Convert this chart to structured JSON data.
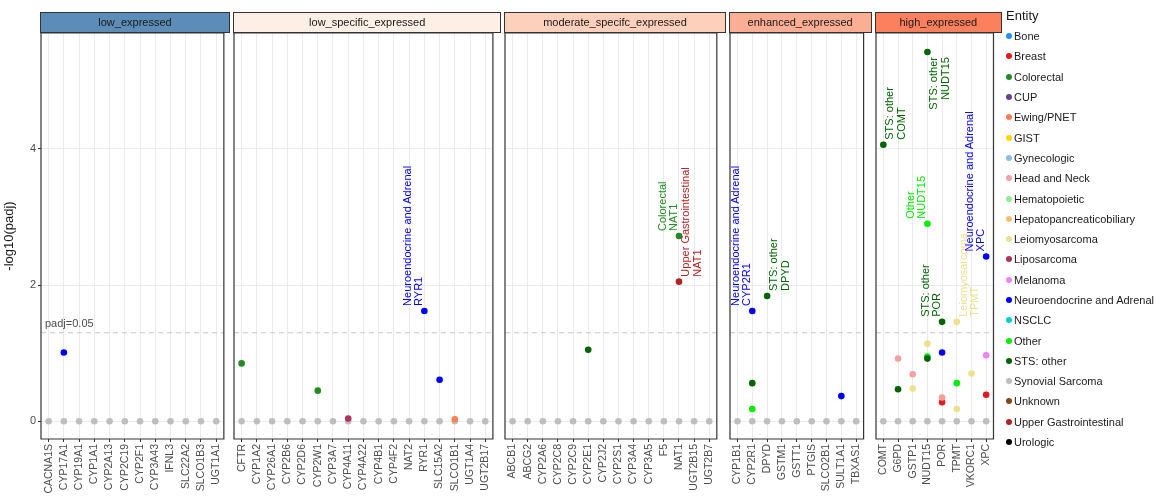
{
  "chart_data": [
    {
      "type": "scatter",
      "title": "low_expressed",
      "ylabel": "-log10(padj)",
      "categories": [
        "CACNA1S",
        "CYP17A1",
        "CYP19A1",
        "CYP1A1",
        "CYP2A13",
        "CYP2C19",
        "CYP2F1",
        "CYP3A43",
        "IFNL3",
        "SLC22A2",
        "SLCO1B3",
        "UGT1A1"
      ],
      "series": [
        {
          "color": "#bebebe",
          "x": [
            "CACNA1S",
            "CYP17A1",
            "CYP19A1",
            "CYP1A1",
            "CYP2A13",
            "CYP2C19",
            "CYP2F1",
            "CYP3A43",
            "IFNL3",
            "SLC22A2",
            "SLCO1B3",
            "UGT1A1"
          ],
          "values": [
            0,
            0,
            0,
            0,
            0,
            0,
            0,
            0,
            0,
            0,
            0,
            0
          ]
        },
        {
          "color": "#0000ff",
          "x": [
            "CYP17A1"
          ],
          "values": [
            1.01
          ]
        }
      ],
      "ylim": [
        -0.26,
        5.7
      ],
      "yticks": [
        0,
        2,
        4
      ],
      "ref_lines": [
        {
          "axis": "y",
          "value": 1.3,
          "color": "#c8c8c8",
          "line_style": "dashed"
        }
      ],
      "annotations": [
        "padj=0.05"
      ],
      "grid": true,
      "legend": false,
      "marker": "circle"
    },
    {
      "type": "scatter",
      "title": "low_specific_expressed",
      "categories": [
        "CFTR",
        "CYP1A2",
        "CYP26A1",
        "CYP2B6",
        "CYP2D6",
        "CYP2W1",
        "CYP3A7",
        "CYP4A11",
        "CYP4A22",
        "CYP4B1",
        "CYP4F2",
        "NAT2",
        "RYR1",
        "SLC15A2",
        "SLCO1B1",
        "UGT1A4",
        "UGT2B17"
      ],
      "series": [
        {
          "color": "#bebebe",
          "x": [
            "CFTR",
            "CYP1A2",
            "CYP26A1",
            "CYP2B6",
            "CYP2D6",
            "CYP2W1",
            "CYP3A7",
            "CYP4A11",
            "CYP4A22",
            "CYP4B1",
            "CYP4F2",
            "NAT2",
            "RYR1",
            "SLC15A2",
            "SLCO1B1",
            "UGT1A4",
            "UGT2B17"
          ],
          "values": [
            0,
            0,
            0,
            0,
            0,
            0,
            0,
            0,
            0,
            0,
            0,
            0,
            0,
            0,
            0,
            0,
            0
          ]
        },
        {
          "color": "#228b22",
          "x": [
            "CFTR",
            "CYP2W1"
          ],
          "values": [
            0.85,
            0.45
          ]
        },
        {
          "color": "#ff7f50",
          "x": [
            "SLCO1B1"
          ],
          "values": [
            0.03
          ]
        },
        {
          "color": "#b03060",
          "x": [
            "CYP4A11"
          ],
          "values": [
            0.04
          ]
        },
        {
          "color": "#0000ff",
          "x": [
            "RYR1",
            "SLC15A2"
          ],
          "values": [
            1.62,
            0.61
          ],
          "value_labels": [
            "Neuroendocrine and Adrenal\nRYR1",
            null
          ]
        }
      ],
      "ylim": [
        -0.26,
        5.7
      ],
      "yticks": [
        0,
        2,
        4
      ],
      "tick_labels": "x",
      "ref_lines": [
        {
          "axis": "y",
          "value": 1.3,
          "color": "#c8c8c8",
          "line_style": "dashed"
        }
      ],
      "grid": true,
      "legend": false,
      "marker": "circle"
    },
    {
      "type": "scatter",
      "title": "moderate_specifc_expressed",
      "categories": [
        "ABCB1",
        "ABCG2",
        "CYP2A6",
        "CYP2C8",
        "CYP2C9",
        "CYP2E1",
        "CYP2J2",
        "CYP2S1",
        "CYP3A4",
        "CYP3A5",
        "F5",
        "NAT1",
        "UGT2B15",
        "UGT2B7"
      ],
      "series": [
        {
          "color": "#bebebe",
          "x": [
            "ABCB1",
            "ABCG2",
            "CYP2A6",
            "CYP2C8",
            "CYP2C9",
            "CYP2E1",
            "CYP2J2",
            "CYP2S1",
            "CYP3A4",
            "CYP3A5",
            "F5",
            "NAT1",
            "UGT2B15",
            "UGT2B7"
          ],
          "values": [
            0,
            0,
            0,
            0,
            0,
            0,
            0,
            0,
            0,
            0,
            0,
            0,
            0,
            0
          ]
        },
        {
          "color": "#228b22",
          "x": [
            "NAT1"
          ],
          "values": [
            2.72
          ],
          "value_labels": [
            "Colorectal\nNAT1"
          ]
        },
        {
          "color": "#006400",
          "x": [
            "CYP2E1"
          ],
          "values": [
            1.05
          ]
        },
        {
          "color": "#b22222",
          "x": [
            "NAT1"
          ],
          "values": [
            2.05
          ],
          "value_labels": [
            "Upper Gastrointestinal\nNAT1"
          ]
        }
      ],
      "ylim": [
        -0.26,
        5.7
      ],
      "yticks": [
        0,
        2,
        4
      ],
      "tick_labels": "x",
      "ref_lines": [
        {
          "axis": "y",
          "value": 1.3,
          "color": "#c8c8c8",
          "line_style": "dashed"
        }
      ],
      "grid": true,
      "legend": false,
      "marker": "circle"
    },
    {
      "type": "scatter",
      "title": "enhanced_expressed",
      "categories": [
        "CYP1B1",
        "CYP2R1",
        "DPYD",
        "GSTM1",
        "GSTT1",
        "PTGIS",
        "SLCO2B1",
        "SULT1A1",
        "TBXAS1"
      ],
      "series": [
        {
          "color": "#bebebe",
          "x": [
            "CYP1B1",
            "CYP2R1",
            "DPYD",
            "GSTM1",
            "GSTT1",
            "PTGIS",
            "SLCO2B1",
            "SULT1A1",
            "TBXAS1"
          ],
          "values": [
            0,
            0,
            0,
            0,
            0,
            0,
            0,
            0,
            0
          ]
        },
        {
          "color": "#0000ff",
          "x": [
            "CYP2R1",
            "SULT1A1"
          ],
          "values": [
            1.62,
            0.37
          ],
          "value_labels": [
            "Neuroendocrine and Adrenal\nCYP2R1",
            null
          ]
        },
        {
          "color": "#00ee00",
          "x": [
            "CYP2R1"
          ],
          "values": [
            0.18
          ]
        },
        {
          "color": "#006400",
          "x": [
            "CYP2R1",
            "DPYD"
          ],
          "values": [
            0.56,
            1.84
          ],
          "value_labels": [
            null,
            "STS: other\nDPYD"
          ]
        }
      ],
      "ylim": [
        -0.26,
        5.7
      ],
      "yticks": [
        0,
        2,
        4
      ],
      "tick_labels": "x",
      "ref_lines": [
        {
          "axis": "y",
          "value": 1.3,
          "color": "#c8c8c8",
          "line_style": "dashed"
        }
      ],
      "grid": true,
      "legend": false,
      "marker": "circle"
    },
    {
      "type": "scatter",
      "title": "high_expressed",
      "legend_title": "Entity",
      "categories": [
        "COMT",
        "G6PD",
        "GSTP1",
        "NUDT15",
        "POR",
        "TPMT",
        "VKORC1",
        "XPC"
      ],
      "series": [
        {
          "color": "#bebebe",
          "x": [
            "COMT",
            "G6PD",
            "GSTP1",
            "NUDT15",
            "POR",
            "TPMT",
            "VKORC1",
            "XPC"
          ],
          "values": [
            0,
            0,
            0,
            0,
            0,
            0,
            0,
            0
          ]
        },
        {
          "name": "Bone",
          "color": "#1e90ff",
          "values": [
            null,
            null,
            null,
            null,
            null,
            null,
            null,
            null
          ]
        },
        {
          "name": "Breast",
          "color": "#e41a1c",
          "x": [
            "POR",
            "XPC"
          ],
          "values": [
            0.28,
            0.39
          ]
        },
        {
          "name": "Colorectal",
          "color": "#228b22",
          "values": [
            null,
            null,
            null,
            null,
            null,
            null,
            null,
            null
          ]
        },
        {
          "name": "CUP",
          "color": "#6a3d9a",
          "values": [
            null,
            null,
            null,
            null,
            null,
            null,
            null,
            null
          ]
        },
        {
          "name": "Ewing/PNET",
          "color": "#ff7f50",
          "values": [
            null,
            null,
            null,
            null,
            null,
            null,
            null,
            null
          ]
        },
        {
          "name": "GIST",
          "color": "#ffd700",
          "values": [
            null,
            null,
            null,
            null,
            null,
            null,
            null,
            null
          ]
        },
        {
          "name": "Gynecologic",
          "color": "#87bfea",
          "values": [
            null,
            null,
            null,
            null,
            null,
            null,
            null,
            null
          ]
        },
        {
          "name": "Head and Neck",
          "color": "#f4a0a0",
          "x": [
            "G6PD",
            "GSTP1",
            "POR"
          ],
          "values": [
            0.92,
            0.69,
            0.35
          ]
        },
        {
          "name": "Hematopoietic",
          "color": "#90ee90",
          "values": [
            null,
            null,
            null,
            null,
            null,
            null,
            null,
            null
          ]
        },
        {
          "name": "Hepatopancreaticobiliary",
          "color": "#fdbf6f",
          "values": [
            null,
            null,
            null,
            null,
            null,
            null,
            null,
            null
          ]
        },
        {
          "name": "Leiomyosarcoma",
          "color": "#eee08e",
          "x": [
            "GSTP1",
            "NUDT15",
            "TPMT",
            "TPMT",
            "VKORC1"
          ],
          "values": [
            0.48,
            1.14,
            1.46,
            0.18,
            0.7
          ],
          "value_labels": [
            null,
            null,
            "Leiomyosarcoma\nTPMT",
            null,
            null
          ]
        },
        {
          "name": "Liposarcoma",
          "color": "#b03060",
          "values": [
            null,
            null,
            null,
            null,
            null,
            null,
            null,
            null
          ]
        },
        {
          "name": "Melanoma",
          "color": "#ee82ee",
          "x": [
            "XPC"
          ],
          "values": [
            0.97
          ]
        },
        {
          "name": "Neuroendocrine and Adrenal",
          "color": "#0000ff",
          "x": [
            "POR",
            "XPC"
          ],
          "values": [
            1.01,
            2.42
          ],
          "value_labels": [
            null,
            "Neuroendocrine and Adrenal\nXPC"
          ]
        },
        {
          "name": "NSCLC",
          "color": "#00ced1",
          "values": [
            null,
            null,
            null,
            null,
            null,
            null,
            null,
            null
          ]
        },
        {
          "name": "Other",
          "color": "#00ee00",
          "x": [
            "NUDT15",
            "NUDT15",
            "TPMT"
          ],
          "values": [
            2.9,
            0.95,
            0.56
          ],
          "value_labels": [
            "Other\nNUDT15",
            null,
            null
          ]
        },
        {
          "name": "STS: other",
          "color": "#006400",
          "x": [
            "COMT",
            "G6PD",
            "NUDT15",
            "NUDT15",
            "POR"
          ],
          "values": [
            4.06,
            0.47,
            5.42,
            0.92,
            1.46
          ],
          "value_labels": [
            "STS: other\nCOMT",
            null,
            "STS: other\nNUDT15",
            null,
            "STS: other\nPOR"
          ]
        },
        {
          "name": "Synovial Sarcoma",
          "color": "#bebebe",
          "values": [
            null,
            null,
            null,
            null,
            null,
            null,
            null,
            null
          ]
        },
        {
          "name": "Unknown",
          "color": "#8b4513",
          "values": [
            null,
            null,
            null,
            null,
            null,
            null,
            null,
            null
          ]
        },
        {
          "name": "Upper Gastrointestinal",
          "color": "#b22222",
          "values": [
            null,
            null,
            null,
            null,
            null,
            null,
            null,
            null
          ]
        },
        {
          "name": "Urologic",
          "color": "#000000",
          "values": [
            null,
            null,
            null,
            null,
            null,
            null,
            null,
            null
          ]
        }
      ],
      "ylim": [
        -0.26,
        5.7
      ],
      "yticks": [
        0,
        2,
        4
      ],
      "tick_labels": "x",
      "ref_lines": [
        {
          "axis": "y",
          "value": 1.3,
          "color": "#c8c8c8",
          "line_style": "dashed"
        }
      ],
      "grid": true,
      "legend": "right",
      "marker": "circle"
    }
  ]
}
